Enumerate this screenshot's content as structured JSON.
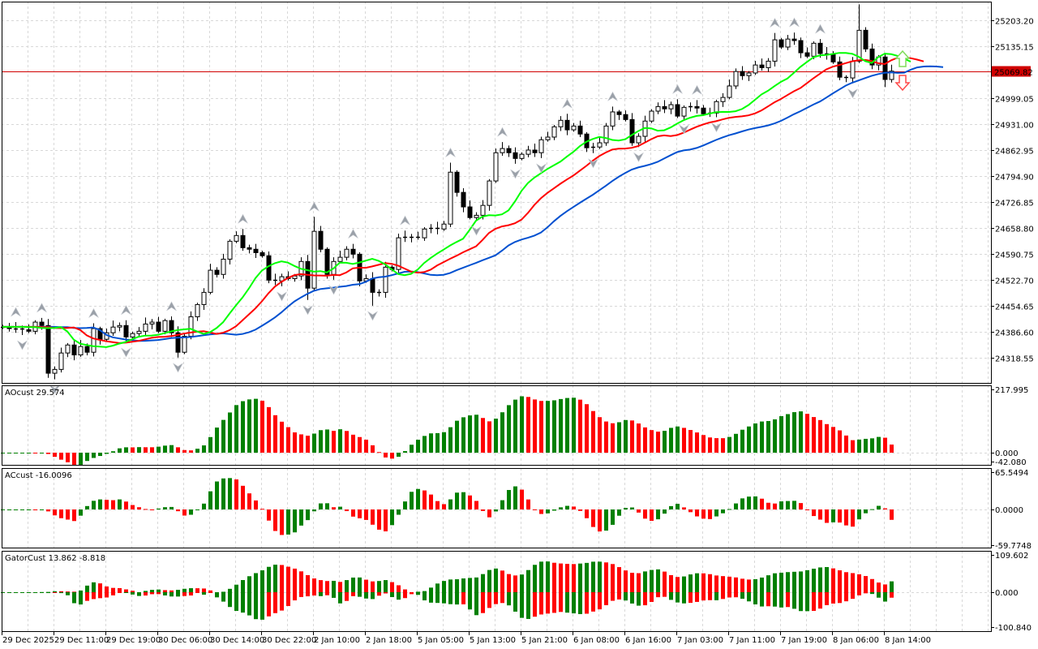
{
  "colors": {
    "bull_bar": "#008000",
    "bear_bar": "#ff0000",
    "lips": "#00ff00",
    "teeth": "#ff0000",
    "jaw": "#0050d0",
    "bid_line": "#d00000",
    "grid": "#d8d8d8",
    "candle_bull": "#ffffff",
    "candle_bear": "#000000",
    "fractal": "#9aa0a8"
  },
  "price_axis": {
    "ticks": [
      "25203.20",
      "25135.15",
      "24999.05",
      "24931.00",
      "24862.95",
      "24794.90",
      "24726.85",
      "24658.80",
      "24590.75",
      "24522.70",
      "24454.65",
      "24386.60",
      "24318.55"
    ],
    "bid_label": "25069.82",
    "bid": 25069.82
  },
  "time_axis": {
    "labels": [
      "29 Dec 2025",
      "29 Dec 11:00",
      "29 Dec 19:00",
      "30 Dec 06:00",
      "30 Dec 14:00",
      "30 Dec 22:00",
      "2 Jan 10:00",
      "2 Jan 18:00",
      "5 Jan 05:00",
      "5 Jan 13:00",
      "5 Jan 21:00",
      "6 Jan 08:00",
      "6 Jan 16:00",
      "7 Jan 03:00",
      "7 Jan 11:00",
      "7 Jan 19:00",
      "8 Jan 06:00",
      "8 Jan 14:00"
    ]
  },
  "indicators": {
    "ao": {
      "title": "AOcust 29.574",
      "scale": [
        "217.995",
        "0.000",
        "-42.080"
      ],
      "range": [
        -42.08,
        217.995
      ]
    },
    "ac": {
      "title": "ACcust -16.0096",
      "scale": [
        "65.5494",
        "0.0000",
        "-59.7748"
      ],
      "range": [
        -59.7748,
        65.5494
      ]
    },
    "gator": {
      "title": "GatorCust 13.862 -8.818",
      "scale": [
        "109.602",
        "0.000",
        "-100.840"
      ],
      "range": [
        -100.84,
        109.602
      ]
    }
  },
  "signals": {
    "up_arrow": "buy-signal",
    "down_arrow": "sell-signal"
  },
  "chart_data": {
    "type": "candlestick",
    "price_range": [
      24270,
      25260
    ],
    "first_open": 24400,
    "close": [
      24399,
      24395,
      24395,
      24392,
      24388,
      24412,
      24403,
      24278,
      24288,
      24331,
      24352,
      24326,
      24348,
      24333,
      24395,
      24367,
      24384,
      24399,
      24403,
      24373,
      24382,
      24388,
      24407,
      24412,
      24388,
      24416,
      24384,
      24333,
      24375,
      24426,
      24458,
      24490,
      24548,
      24537,
      24577,
      24624,
      24639,
      24607,
      24603,
      24594,
      24586,
      24522,
      24520,
      24531,
      24526,
      24533,
      24571,
      24501,
      24650,
      24603,
      24537,
      24571,
      24582,
      24603,
      24590,
      24520,
      24526,
      24490,
      24490,
      24556,
      24550,
      24633,
      24635,
      24635,
      24633,
      24656,
      24658,
      24656,
      24669,
      24805,
      24752,
      24714,
      24686,
      24692,
      24718,
      24782,
      24856,
      24867,
      24856,
      24841,
      24852,
      24863,
      24856,
      24890,
      24897,
      24924,
      24941,
      24916,
      24926,
      24905,
      24869,
      24871,
      24882,
      24926,
      24963,
      24956,
      24943,
      24882,
      24899,
      24939,
      24965,
      24977,
      24971,
      24982,
      24952,
      24975,
      24977,
      24973,
      24958,
      24960,
      24990,
      25001,
      25031,
      25069,
      25058,
      25065,
      25086,
      25079,
      25096,
      25152,
      25133,
      25154,
      25150,
      25118,
      25109,
      25143,
      25116,
      25114,
      25094,
      25054,
      25052,
      25096,
      25177,
      25128,
      25086,
      25107,
      25048,
      25069.82
    ],
    "extreme_highs": {
      "48": 24688,
      "69": 24830,
      "119": 25170,
      "132": 25245
    },
    "extreme_lows": {
      "7": 24266,
      "8": 24262,
      "47": 24470,
      "57": 24455,
      "136": 25028
    }
  }
}
